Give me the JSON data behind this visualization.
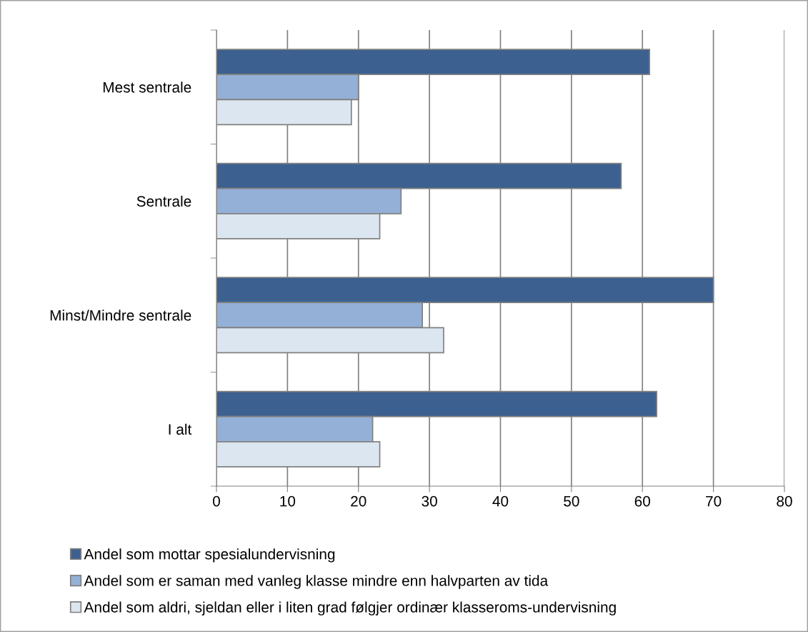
{
  "chart_data": {
    "type": "bar",
    "orientation": "horizontal",
    "categories": [
      "Mest sentrale",
      "Sentrale",
      "Minst/Mindre sentrale",
      "I alt"
    ],
    "series": [
      {
        "name": "Andel som mottar spesialundervisning",
        "color": "#3c6090",
        "values": [
          61,
          57,
          70,
          62
        ]
      },
      {
        "name": "Andel som er saman med vanleg klasse mindre enn halvparten av tida",
        "color": "#94b0d6",
        "values": [
          20,
          26,
          29,
          22
        ]
      },
      {
        "name": "Andel som aldri, sjeldan eller i liten grad følgjer ordinær klasseroms-undervisning",
        "color": "#dce6f1",
        "values": [
          19,
          23,
          32,
          23
        ]
      }
    ],
    "xlim": [
      0,
      80
    ],
    "xticks": [
      0,
      10,
      20,
      30,
      40,
      50,
      60,
      70,
      80
    ],
    "grid": "x",
    "legend": "bottom"
  }
}
